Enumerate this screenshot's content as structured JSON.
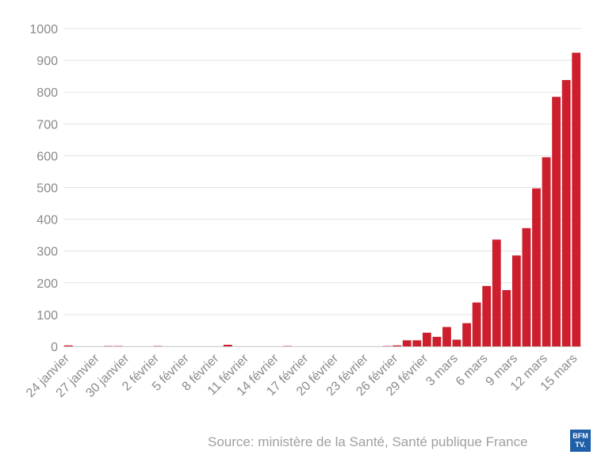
{
  "chart_data": {
    "type": "bar",
    "ylim": [
      0,
      1000
    ],
    "yticks": [
      0,
      100,
      200,
      300,
      400,
      500,
      600,
      700,
      800,
      900,
      1000
    ],
    "xtick_labels": [
      "24 janvier",
      "27 janvier",
      "30 janvier",
      "2 février",
      "5 février",
      "8 février",
      "11 février",
      "14 février",
      "17 février",
      "20 février",
      "23 février",
      "26 février",
      "29 février",
      "3 mars",
      "6 mars",
      "9 mars",
      "12 mars",
      "15 mars"
    ],
    "categories": [
      "24 janvier",
      "25 janvier",
      "26 janvier",
      "27 janvier",
      "28 janvier",
      "29 janvier",
      "30 janvier",
      "31 janvier",
      "1 février",
      "2 février",
      "3 février",
      "4 février",
      "5 février",
      "6 février",
      "7 février",
      "8 février",
      "9 février",
      "10 février",
      "11 février",
      "12 février",
      "13 février",
      "14 février",
      "15 février",
      "16 février",
      "17 février",
      "18 février",
      "19 février",
      "20 février",
      "21 février",
      "22 février",
      "23 février",
      "24 février",
      "25 février",
      "26 février",
      "27 février",
      "28 février",
      "29 février",
      "1 mars",
      "2 mars",
      "3 mars",
      "4 mars",
      "5 mars",
      "6 mars",
      "7 mars",
      "8 mars",
      "9 mars",
      "10 mars",
      "11 mars",
      "12 mars",
      "13 mars",
      "14 mars",
      "15 mars"
    ],
    "values": [
      3,
      0,
      0,
      0,
      1,
      1,
      0,
      0,
      0,
      1,
      0,
      0,
      0,
      0,
      0,
      0,
      5,
      0,
      0,
      0,
      0,
      0,
      1,
      0,
      0,
      0,
      0,
      0,
      0,
      0,
      0,
      0,
      1,
      3,
      19,
      19,
      43,
      30,
      61,
      21,
      73,
      138,
      190,
      336,
      177,
      286,
      372,
      497,
      595,
      785,
      838,
      924
    ],
    "bar_color": "#cc1e2c",
    "grid": true
  },
  "source_text": "Source: ministère de la Santé, Santé publique France",
  "logo": {
    "line1": "BFM",
    "line2": "TV."
  }
}
